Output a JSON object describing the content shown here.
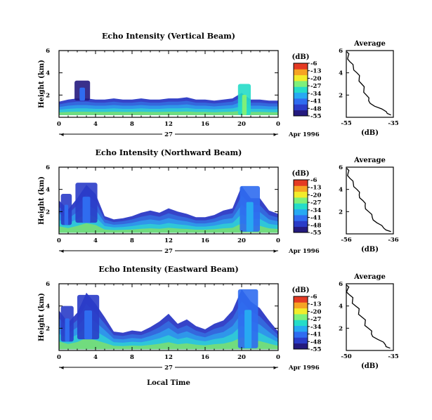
{
  "chart_data": [
    {
      "type": "heatmap",
      "title": "Echo Intensity (Vertical Beam)",
      "ylabel": "Height (km)",
      "yticks": [
        "2",
        "4",
        "6"
      ],
      "xticks": [
        "0",
        "4",
        "8",
        "12",
        "16",
        "20",
        "0"
      ],
      "date_day": "27",
      "date_label": "Apr 1996",
      "xlim": [
        0,
        24
      ],
      "ylim": [
        0,
        6
      ],
      "colorbar": {
        "unit": "(dB)",
        "ticks": [
          "-6",
          "-13",
          "-20",
          "-27",
          "-34",
          "-41",
          "-48",
          "-55"
        ],
        "range": [
          -55,
          -6
        ],
        "colors": [
          "#241a7e",
          "#2a3cc8",
          "#2f6cf0",
          "#27a9f2",
          "#25dcc8",
          "#7ef07a",
          "#f2ec2a",
          "#f6a323",
          "#e43a23"
        ]
      },
      "layer_colors": [
        "#3643c8",
        "#3468dd",
        "#2f96ea",
        "#2fc6d8",
        "#71dc7e"
      ],
      "echo_layer": {
        "base_km": 0.2,
        "top_km": [
          1.4,
          1.6,
          1.7,
          1.7,
          1.6,
          1.6,
          1.7,
          1.6,
          1.6,
          1.7,
          1.6,
          1.6,
          1.7,
          1.7,
          1.8,
          1.6,
          1.6,
          1.5,
          1.6,
          1.7,
          2.2,
          1.6,
          1.6,
          1.5,
          1.5
        ]
      },
      "features": [
        {
          "t": [
            1.7,
            3.4
          ],
          "z": [
            1.5,
            3.3
          ],
          "peak": -44
        },
        {
          "t": [
            19.6,
            21.0
          ],
          "z": [
            0.2,
            3.0
          ],
          "peak": -24
        }
      ],
      "average_profile": {
        "title": "Average",
        "xlabel": "(dB)",
        "xlim": [
          -55,
          -35
        ],
        "xticks": [
          "-55",
          "-35"
        ],
        "ylim": [
          0,
          6
        ],
        "yticks": [
          "2",
          "4",
          "6"
        ],
        "height_km": [
          0.2,
          0.5,
          1.0,
          1.5,
          2.0,
          2.5,
          3.0,
          3.5,
          4.0,
          4.5,
          5.0,
          5.5,
          5.9
        ],
        "db": [
          -36,
          -38,
          -43,
          -45.5,
          -46.5,
          -47.5,
          -48.5,
          -49.5,
          -50.5,
          -52,
          -53.5,
          -54.2,
          -54.8
        ]
      }
    },
    {
      "type": "heatmap",
      "title": "Echo Intensity (Northward Beam)",
      "ylabel": "Height (km)",
      "yticks": [
        "2",
        "4",
        "6"
      ],
      "xticks": [
        "0",
        "4",
        "8",
        "12",
        "16",
        "20",
        "0"
      ],
      "date_day": "27",
      "date_label": "Apr 1996",
      "xlim": [
        0,
        24
      ],
      "ylim": [
        0,
        6
      ],
      "colorbar": {
        "unit": "(dB)",
        "ticks": [
          "-6",
          "-13",
          "-20",
          "-27",
          "-34",
          "-41",
          "-48",
          "-55"
        ],
        "range": [
          -55,
          -6
        ],
        "colors": [
          "#241a7e",
          "#2a3cc8",
          "#2f6cf0",
          "#27a9f2",
          "#25dcc8",
          "#7ef07a",
          "#f2ec2a",
          "#f6a323",
          "#e43a23"
        ]
      },
      "layer_colors": [
        "#3643c8",
        "#3468dd",
        "#2f96ea",
        "#2fc6d8",
        "#71dc7e"
      ],
      "echo_layer": {
        "base_km": 0.1,
        "top_km": [
          3.0,
          2.2,
          3.2,
          4.4,
          3.6,
          1.6,
          1.3,
          1.4,
          1.6,
          1.9,
          2.1,
          1.9,
          2.3,
          2.0,
          1.8,
          1.5,
          1.5,
          1.7,
          2.1,
          2.3,
          4.3,
          3.2,
          3.2,
          2.1,
          1.8
        ]
      },
      "features": [
        {
          "t": [
            0.2,
            1.4
          ],
          "z": [
            0.8,
            3.6
          ],
          "peak": -40
        },
        {
          "t": [
            1.8,
            4.2
          ],
          "z": [
            1.0,
            4.6
          ],
          "peak": -41
        },
        {
          "t": [
            19.8,
            22.0
          ],
          "z": [
            0.2,
            4.3
          ],
          "peak": -36
        }
      ],
      "average_profile": {
        "title": "Average",
        "xlabel": "(dB)",
        "xlim": [
          -56,
          -36
        ],
        "xticks": [
          "-56",
          "-36"
        ],
        "ylim": [
          0,
          6
        ],
        "yticks": [
          "2",
          "4",
          "6"
        ],
        "height_km": [
          0.2,
          0.5,
          1.0,
          1.5,
          2.0,
          2.5,
          3.0,
          3.5,
          4.0,
          4.5,
          5.0,
          5.5,
          5.9
        ],
        "db": [
          -37,
          -40,
          -43,
          -45,
          -46.5,
          -48,
          -49,
          -50.5,
          -51.5,
          -53,
          -54.5,
          -55.2,
          -55.8
        ]
      }
    },
    {
      "type": "heatmap",
      "title": "Echo Intensity (Eastward Beam)",
      "ylabel": "Height (km)",
      "yticks": [
        "2",
        "4",
        "6"
      ],
      "xticks": [
        "0",
        "4",
        "8",
        "12",
        "16",
        "20",
        "0"
      ],
      "date_day": "27",
      "date_label": "Apr 1996",
      "xlabel": "Local Time",
      "xlim": [
        0,
        24
      ],
      "ylim": [
        0,
        6
      ],
      "colorbar": {
        "unit": "(dB)",
        "ticks": [
          "-6",
          "-13",
          "-20",
          "-27",
          "-34",
          "-41",
          "-48",
          "-55"
        ],
        "range": [
          -55,
          -6
        ],
        "colors": [
          "#241a7e",
          "#2a3cc8",
          "#2f6cf0",
          "#27a9f2",
          "#25dcc8",
          "#7ef07a",
          "#f2ec2a",
          "#f6a323",
          "#e43a23"
        ]
      },
      "layer_colors": [
        "#3643c8",
        "#3468dd",
        "#2f96ea",
        "#2fc6d8",
        "#71dc7e"
      ],
      "echo_layer": {
        "base_km": 0.1,
        "top_km": [
          3.6,
          2.5,
          3.4,
          5.2,
          4.2,
          3.0,
          1.7,
          1.6,
          1.8,
          1.7,
          2.1,
          2.6,
          3.3,
          2.4,
          2.8,
          2.2,
          1.9,
          2.4,
          2.7,
          3.6,
          5.5,
          4.4,
          3.8,
          2.7,
          1.7
        ]
      },
      "features": [
        {
          "t": [
            0.2,
            1.6
          ],
          "z": [
            0.8,
            4.0
          ],
          "peak": -41
        },
        {
          "t": [
            2.0,
            4.4
          ],
          "z": [
            1.0,
            5.0
          ],
          "peak": -40
        },
        {
          "t": [
            19.6,
            21.8
          ],
          "z": [
            0.2,
            5.5
          ],
          "peak": -34
        }
      ],
      "average_profile": {
        "title": "Average",
        "xlabel": "(dB)",
        "xlim": [
          -50,
          -35
        ],
        "xticks": [
          "-50",
          "-35"
        ],
        "ylim": [
          0,
          6
        ],
        "yticks": [
          "2",
          "4",
          "6"
        ],
        "height_km": [
          0.2,
          0.5,
          1.0,
          1.5,
          2.0,
          2.5,
          3.0,
          3.5,
          4.0,
          4.5,
          5.0,
          5.5,
          5.9
        ],
        "db": [
          -36,
          -37.5,
          -40,
          -42,
          -43,
          -44,
          -45,
          -46,
          -47,
          -48,
          -49,
          -49.6,
          -50
        ]
      }
    }
  ]
}
